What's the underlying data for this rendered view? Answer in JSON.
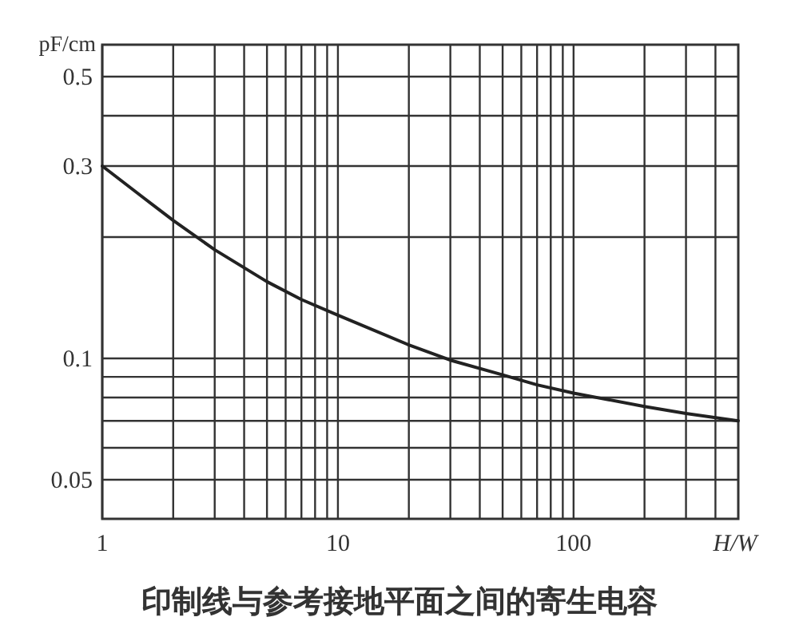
{
  "chart_data": {
    "type": "line",
    "title": "印制线与参考接地平面之间的寄生电容",
    "xlabel": "H/W",
    "ylabel": "pF/cm",
    "log": "xy",
    "grid": true,
    "xlim": [
      1,
      500
    ],
    "ylim": [
      0.04,
      0.6
    ],
    "xticks": [
      1,
      {
        "value": 2,
        "label": null
      },
      {
        "value": 3,
        "label": null
      },
      {
        "value": 4,
        "label": null
      },
      {
        "value": 5,
        "label": null
      },
      {
        "value": 6,
        "label": null
      },
      {
        "value": 7,
        "label": null
      },
      {
        "value": 8,
        "label": null
      },
      {
        "value": 9,
        "label": null
      },
      10,
      {
        "value": 20,
        "label": null
      },
      {
        "value": 30,
        "label": null
      },
      {
        "value": 40,
        "label": null
      },
      {
        "value": 50,
        "label": null
      },
      {
        "value": 60,
        "label": null
      },
      {
        "value": 70,
        "label": null
      },
      {
        "value": 80,
        "label": null
      },
      {
        "value": 90,
        "label": null
      },
      100,
      {
        "value": 200,
        "label": null
      },
      {
        "value": 300,
        "label": null
      },
      {
        "value": 400,
        "label": null
      }
    ],
    "yticks": [
      0.05,
      {
        "value": 0.06,
        "label": null
      },
      {
        "value": 0.07,
        "label": null
      },
      {
        "value": 0.08,
        "label": null
      },
      {
        "value": 0.09,
        "label": null
      },
      0.1,
      {
        "value": 0.2,
        "label": null
      },
      0.3,
      {
        "value": 0.4,
        "label": null
      },
      0.5
    ],
    "x": [
      1,
      1.5,
      2,
      3,
      5,
      7,
      10,
      20,
      30,
      50,
      70,
      100,
      200,
      300,
      500
    ],
    "series": [
      {
        "color": "#222222",
        "values": [
          0.3,
          0.25,
          0.22,
          0.186,
          0.155,
          0.14,
          0.128,
          0.108,
          0.099,
          0.091,
          0.086,
          0.082,
          0.076,
          0.073,
          0.07
        ]
      }
    ]
  }
}
